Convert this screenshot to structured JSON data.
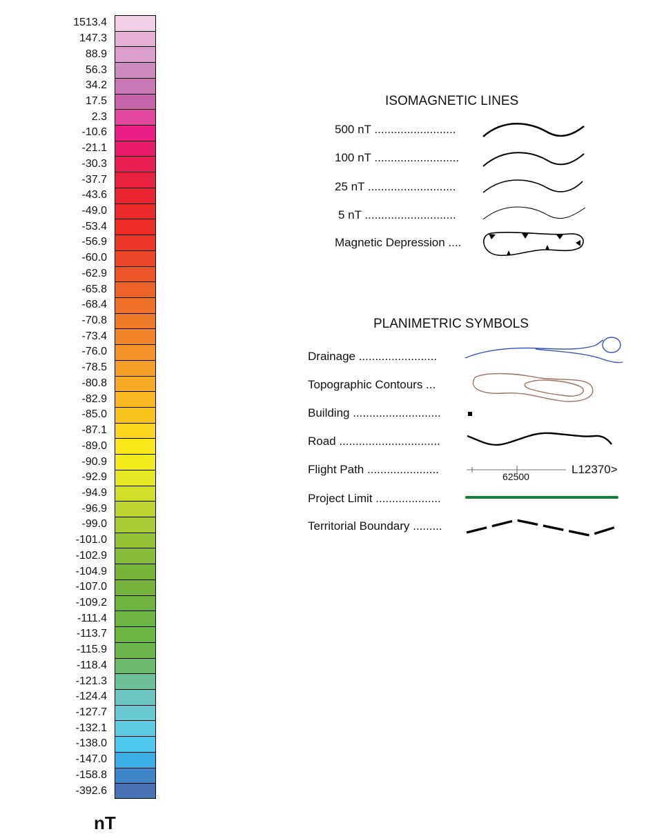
{
  "colorbar": {
    "unit": "nT",
    "entries": [
      {
        "label": "1513.4",
        "color": "#f0cfe6"
      },
      {
        "label": "147.3",
        "color": "#e4b0d4"
      },
      {
        "label": "88.9",
        "color": "#da9ec9"
      },
      {
        "label": "56.3",
        "color": "#d08bbe"
      },
      {
        "label": "34.2",
        "color": "#c977b3"
      },
      {
        "label": "17.5",
        "color": "#c463a8"
      },
      {
        "label": "2.3",
        "color": "#e3489d"
      },
      {
        "label": "-10.6",
        "color": "#ea1e85"
      },
      {
        "label": "-21.1",
        "color": "#e81a6a"
      },
      {
        "label": "-30.3",
        "color": "#e81d52"
      },
      {
        "label": "-37.7",
        "color": "#e9203f"
      },
      {
        "label": "-43.6",
        "color": "#e92430"
      },
      {
        "label": "-49.0",
        "color": "#ea2828"
      },
      {
        "label": "-53.4",
        "color": "#eb2c24"
      },
      {
        "label": "-56.9",
        "color": "#eb3526"
      },
      {
        "label": "-60.0",
        "color": "#ec4628"
      },
      {
        "label": "-62.9",
        "color": "#ed5528"
      },
      {
        "label": "-65.8",
        "color": "#ee6328"
      },
      {
        "label": "-68.4",
        "color": "#ef7028"
      },
      {
        "label": "-70.8",
        "color": "#f07b28"
      },
      {
        "label": "-73.4",
        "color": "#f18628"
      },
      {
        "label": "-76.0",
        "color": "#f39227"
      },
      {
        "label": "-78.5",
        "color": "#f59e26"
      },
      {
        "label": "-80.8",
        "color": "#f7aa24"
      },
      {
        "label": "-82.9",
        "color": "#f9b722"
      },
      {
        "label": "-85.0",
        "color": "#fbc51f"
      },
      {
        "label": "-87.1",
        "color": "#fcd61c"
      },
      {
        "label": "-89.0",
        "color": "#fbe81a"
      },
      {
        "label": "-90.9",
        "color": "#f2ec1d"
      },
      {
        "label": "-92.9",
        "color": "#e4e723"
      },
      {
        "label": "-94.9",
        "color": "#d2df29"
      },
      {
        "label": "-96.9",
        "color": "#bdd52e"
      },
      {
        "label": "-99.0",
        "color": "#a8cb33"
      },
      {
        "label": "-101.0",
        "color": "#96c236"
      },
      {
        "label": "-102.9",
        "color": "#87bb38"
      },
      {
        "label": "-104.9",
        "color": "#7ab53a"
      },
      {
        "label": "-107.0",
        "color": "#73b33c"
      },
      {
        "label": "-109.2",
        "color": "#6fb43e"
      },
      {
        "label": "-111.4",
        "color": "#6cb540"
      },
      {
        "label": "-113.7",
        "color": "#6cb642"
      },
      {
        "label": "-115.9",
        "color": "#6cb84c"
      },
      {
        "label": "-118.4",
        "color": "#6cbb6a"
      },
      {
        "label": "-121.3",
        "color": "#6cc098"
      },
      {
        "label": "-124.4",
        "color": "#6cc6c0"
      },
      {
        "label": "-127.7",
        "color": "#69cad6"
      },
      {
        "label": "-132.1",
        "color": "#5ecbe4"
      },
      {
        "label": "-138.0",
        "color": "#4dc8ee"
      },
      {
        "label": "-147.0",
        "color": "#3aaee4"
      },
      {
        "label": "-158.8",
        "color": "#3e86c8"
      },
      {
        "label": "-392.6",
        "color": "#4a74b8"
      }
    ]
  },
  "isomagnetic": {
    "title": "ISOMAGNETIC LINES",
    "items": [
      {
        "label": "500 nT .........................",
        "icon": "contour-500-line"
      },
      {
        "label": "100 nT ..........................",
        "icon": "contour-100-line"
      },
      {
        "label": "25 nT ...........................",
        "icon": "contour-25-line"
      },
      {
        "label": "5 nT ............................",
        "icon": "contour-5-line"
      },
      {
        "label": "Magnetic Depression ....",
        "icon": "magnetic-depression-symbol"
      }
    ]
  },
  "planimetric": {
    "title": "PLANIMETRIC SYMBOLS",
    "items": [
      {
        "label": "Drainage ........................",
        "icon": "drainage-symbol",
        "color": "#3a55b8"
      },
      {
        "label": "Topographic Contours ...",
        "icon": "topographic-contour-symbol",
        "color": "#9a7060"
      },
      {
        "label": "Building ...........................",
        "icon": "building-symbol",
        "color": "#000000"
      },
      {
        "label": "Road ...............................",
        "icon": "road-symbol",
        "color": "#000000"
      },
      {
        "label": "Flight Path ......................",
        "icon": "flight-path-symbol",
        "color": "#000000",
        "fiducial": "62500",
        "line_id": "L12370>"
      },
      {
        "label": "Project Limit ....................",
        "icon": "project-limit-symbol",
        "color": "#13803a"
      },
      {
        "label": "Territorial Boundary .........",
        "icon": "territorial-boundary-symbol",
        "color": "#000000"
      }
    ]
  }
}
